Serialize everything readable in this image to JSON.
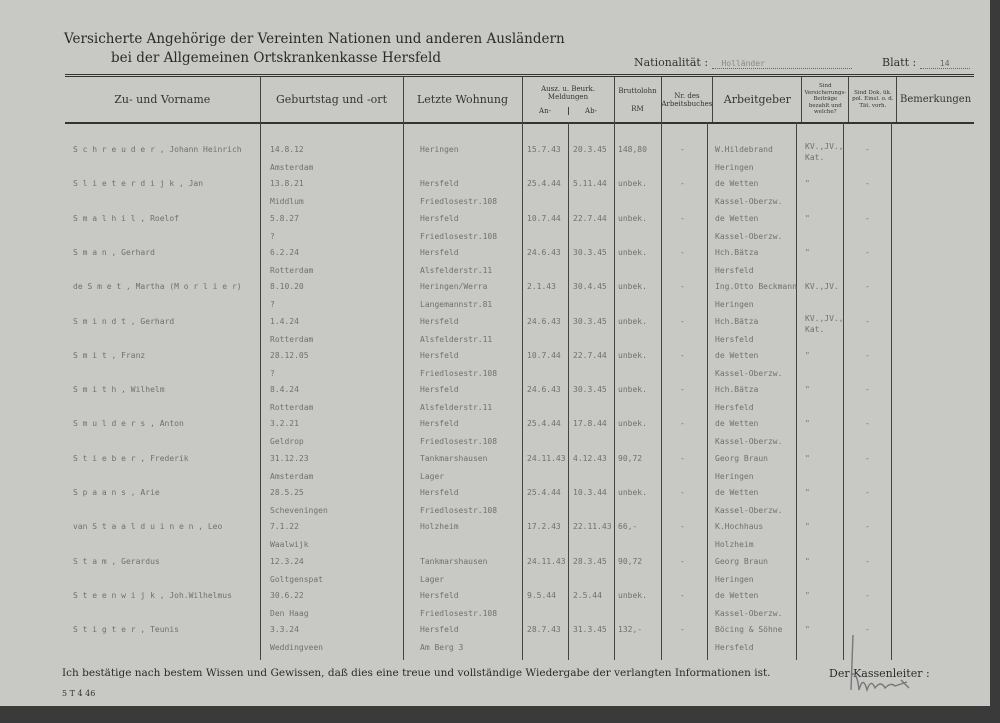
{
  "title": {
    "line1": "Versicherte Angehörige der Vereinten Nationen und anderen Ausländern",
    "line2": "bei der Allgemeinen Ortskrankenkasse Hersfeld"
  },
  "nationality": {
    "label": "Nationalität :",
    "value": "Holländer"
  },
  "sheet": {
    "label": "Blatt :",
    "value": "14"
  },
  "columns": {
    "name": "Zu- und Vorname",
    "birth": "Geburtstag und -ort",
    "address": "Letzte Wohnung",
    "registration": "Ausz. u. Beurk. Meldungen",
    "reg_in": "An-",
    "reg_out": "Ab-",
    "wage": "Bruttolohn",
    "wage_unit": "RM",
    "workbook": "Nr. des Arbeitsbuches",
    "employer": "Arbeitgeber",
    "insurance": "Sind Versicherungs-Beiträge bezahlt und welche?",
    "documents": "Sind Dok. ük. pol. Einsl. o. d. Tät. vorh.",
    "remarks": "Bemerkungen"
  },
  "rows": [
    {
      "name": "S c h r e u d e r , Johann Heinrich",
      "birth_date": "14.8.12",
      "birth_place": "Amsterdam",
      "addr1": "Heringen",
      "addr2": "",
      "in": "15.7.43",
      "out": "20.3.45",
      "wage": "148,80",
      "workbook": "-",
      "emp1": "W.Hildebrand",
      "emp2": "Heringen",
      "ins": "KV.,JV., Kat.",
      "docs": "-"
    },
    {
      "name": "S l i e t e r d i j k , Jan",
      "birth_date": "13.8.21",
      "birth_place": "Middlum",
      "addr1": "Hersfeld",
      "addr2": "Friedlosestr.108",
      "in": "25.4.44",
      "out": "5.11.44",
      "wage": "unbek.",
      "workbook": "-",
      "emp1": "de Wetten",
      "emp2": "Kassel-Oberzw.",
      "ins": "\"",
      "docs": "-"
    },
    {
      "name": "S m a l h i l , Roelof",
      "birth_date": "5.8.27",
      "birth_place": "?",
      "addr1": "Hersfeld",
      "addr2": "Friedlosestr.108",
      "in": "10.7.44",
      "out": "22.7.44",
      "wage": "unbek.",
      "workbook": "-",
      "emp1": "de Wetten",
      "emp2": "Kassel-Oberzw.",
      "ins": "\"",
      "docs": "-"
    },
    {
      "name": "S m a n , Gerhard",
      "birth_date": "6.2.24",
      "birth_place": "Rotterdam",
      "addr1": "Hersfeld",
      "addr2": "Alsfelderstr.11",
      "in": "24.6.43",
      "out": "30.3.45",
      "wage": "unbek.",
      "workbook": "-",
      "emp1": "Hch.Bätza",
      "emp2": "Hersfeld",
      "ins": "\"",
      "docs": "-"
    },
    {
      "name": "de S m e t , Martha (M o r l i e r)",
      "birth_date": "8.10.20",
      "birth_place": "?",
      "addr1": "Heringen/Werra",
      "addr2": "Langemannstr.81",
      "in": "2.1.43",
      "out": "30.4.45",
      "wage": "unbek.",
      "workbook": "-",
      "emp1": "Ing.Otto Beckmann",
      "emp2": "Heringen",
      "ins": "KV.,JV.",
      "docs": "-"
    },
    {
      "name": "S m i n d t , Gerhard",
      "birth_date": "1.4.24",
      "birth_place": "Rotterdam",
      "addr1": "Hersfeld",
      "addr2": "Alsfelderstr.11",
      "in": "24.6.43",
      "out": "30.3.45",
      "wage": "unbek.",
      "workbook": "-",
      "emp1": "Hch.Bätza",
      "emp2": "Hersfeld",
      "ins": "KV.,JV., Kat.",
      "docs": "-"
    },
    {
      "name": "S m i t , Franz",
      "birth_date": "28.12.05",
      "birth_place": "?",
      "addr1": "Hersfeld",
      "addr2": "Friedlosestr.108",
      "in": "10.7.44",
      "out": "22.7.44",
      "wage": "unbek.",
      "workbook": "-",
      "emp1": "de Wetten",
      "emp2": "Kassel-Oberzw.",
      "ins": "\"",
      "docs": "-"
    },
    {
      "name": "S m i t h , Wilhelm",
      "birth_date": "8.4.24",
      "birth_place": "Rotterdam",
      "addr1": "Hersfeld",
      "addr2": "Alsfelderstr.11",
      "in": "24.6.43",
      "out": "30.3.45",
      "wage": "unbek.",
      "workbook": "-",
      "emp1": "Hch.Bätza",
      "emp2": "Hersfeld",
      "ins": "\"",
      "docs": "-"
    },
    {
      "name": "S m u l d e r s , Anton",
      "birth_date": "3.2.21",
      "birth_place": "Geldrop",
      "addr1": "Hersfeld",
      "addr2": "Friedlosestr.108",
      "in": "25.4.44",
      "out": "17.8.44",
      "wage": "unbek.",
      "workbook": "-",
      "emp1": "de Wetten",
      "emp2": "Kassel-Oberzw.",
      "ins": "\"",
      "docs": "-"
    },
    {
      "name": "S t i e b e r , Frederik",
      "birth_date": "31.12.23",
      "birth_place": "Amsterdam",
      "addr1": "Tankmarshausen",
      "addr2": "Lager",
      "in": "24.11.43",
      "out": "4.12.43",
      "wage": "90,72",
      "workbook": "-",
      "emp1": "Georg Braun",
      "emp2": "Heringen",
      "ins": "\"",
      "docs": "-"
    },
    {
      "name": "S p a a n s , Arie",
      "birth_date": "28.5.25",
      "birth_place": "Scheveningen",
      "addr1": "Hersfeld",
      "addr2": "Friedlosestr.108",
      "in": "25.4.44",
      "out": "10.3.44",
      "wage": "unbek.",
      "workbook": "-",
      "emp1": "de Wetten",
      "emp2": "Kassel-Oberzw.",
      "ins": "\"",
      "docs": "-"
    },
    {
      "name": "van S t a a l d u i n e n , Leo",
      "birth_date": "7.1.22",
      "birth_place": "Waalwijk",
      "addr1": "Holzheim",
      "addr2": "",
      "in": "17.2.43",
      "out": "22.11.43",
      "wage": "66,-",
      "workbook": "-",
      "emp1": "K.Hochhaus",
      "emp2": "Holzheim",
      "ins": "\"",
      "docs": "-"
    },
    {
      "name": "S t a m , Gerardus",
      "birth_date": "12.3.24",
      "birth_place": "Goltgenspat",
      "addr1": "Tankmarshausen",
      "addr2": "Lager",
      "in": "24.11.43",
      "out": "28.3.45",
      "wage": "90,72",
      "workbook": "-",
      "emp1": "Georg Braun",
      "emp2": "Heringen",
      "ins": "\"",
      "docs": "-"
    },
    {
      "name": "S t e e n w i j k , Joh.Wilhelmus",
      "birth_date": "30.6.22",
      "birth_place": "Den Haag",
      "addr1": "Hersfeld",
      "addr2": "Friedlosestr.108",
      "in": "9.5.44",
      "out": "2.5.44",
      "wage": "unbek.",
      "workbook": "-",
      "emp1": "de Wetten",
      "emp2": "Kassel-Oberzw.",
      "ins": "\"",
      "docs": "-"
    },
    {
      "name": "S t i g t e r , Teunis",
      "birth_date": "3.3.24",
      "birth_place": "Weddingveen",
      "addr1": "Hersfeld",
      "addr2": "Am Berg 3",
      "in": "28.7.43",
      "out": "31.3.45",
      "wage": "132,-",
      "workbook": "-",
      "emp1": "Böcing & Söhne",
      "emp2": "Hersfeld",
      "ins": "\"",
      "docs": "-"
    }
  ],
  "footer": {
    "declaration": "Ich bestätige nach bestem Wissen und Gewissen, daß dies eine treue und vollständige Wiedergabe der verlangten Informationen ist.",
    "signatory": "Der Kassenleiter :",
    "form_code": "5 T 4 46"
  }
}
